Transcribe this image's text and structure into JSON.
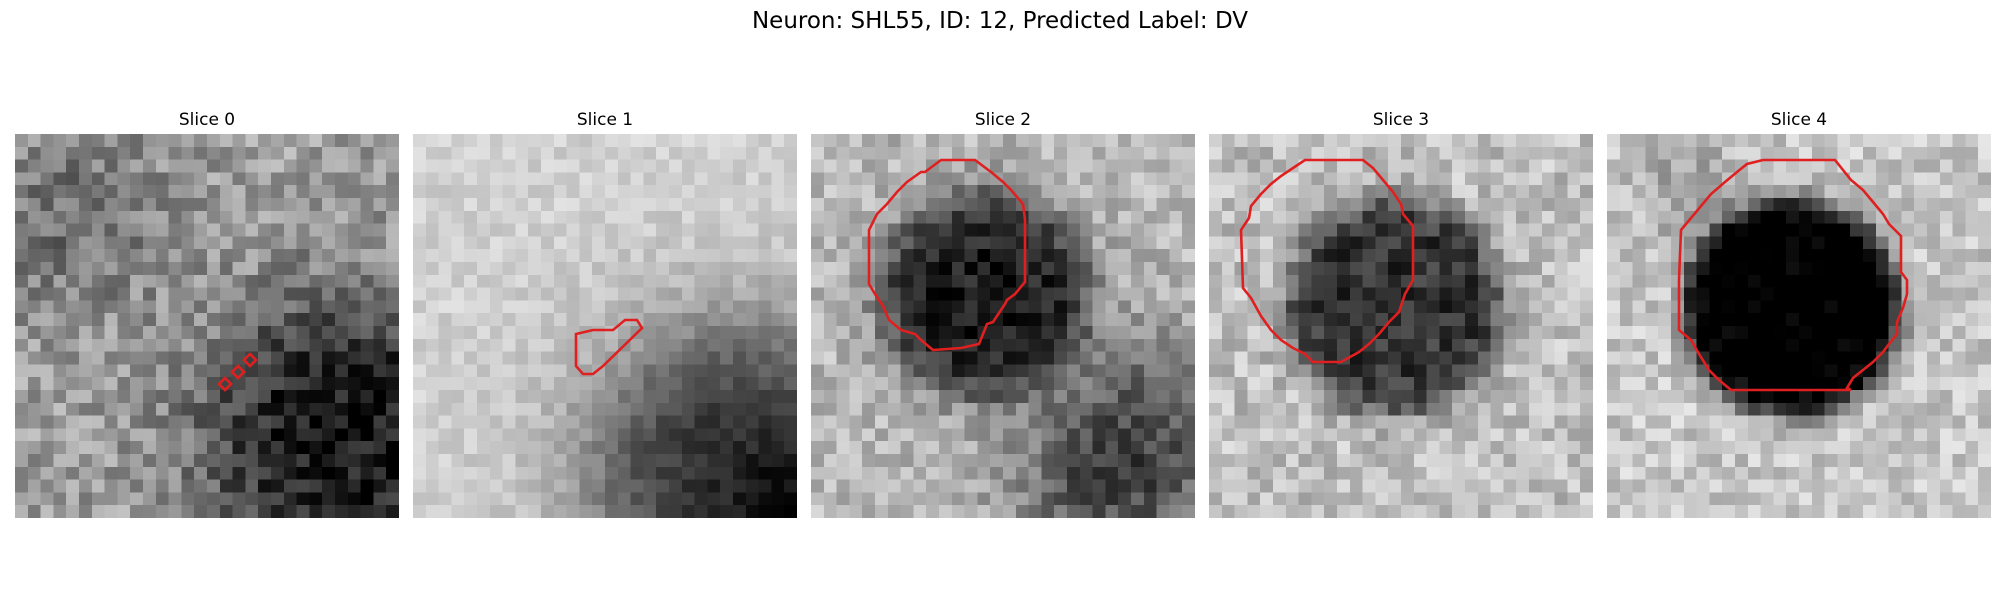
{
  "title": "Neuron: SHL55, ID: 12, Predicted Label: DV",
  "contour_color": "#e02020",
  "colormap": "grayscale",
  "slices": [
    {
      "label": "Slice 0"
    },
    {
      "label": "Slice 1"
    },
    {
      "label": "Slice 2"
    },
    {
      "label": "Slice 3"
    },
    {
      "label": "Slice 4"
    }
  ]
}
